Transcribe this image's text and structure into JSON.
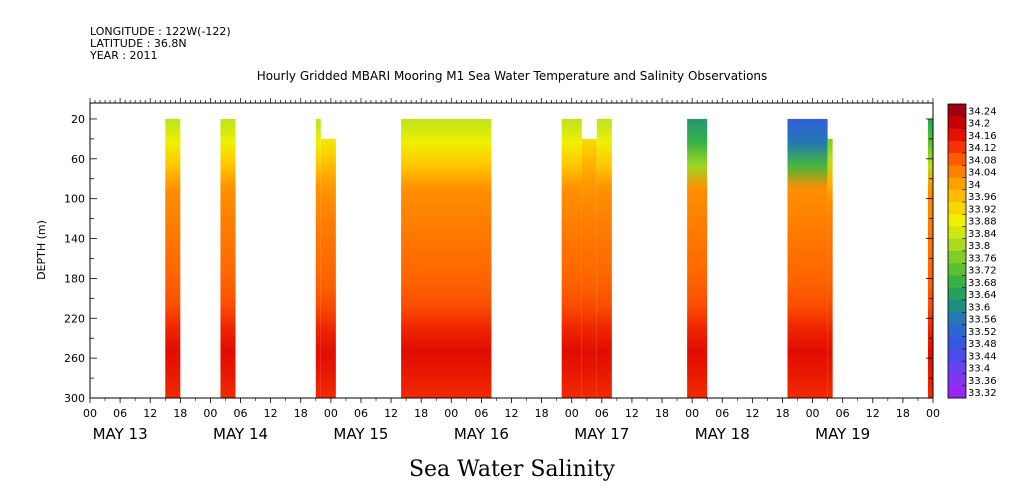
{
  "header": {
    "longitude": "LONGITUDE : 122W(-122)",
    "latitude": "LATITUDE : 36.8N",
    "year": "YEAR : 2011"
  },
  "chart_data": {
    "type": "heatmap",
    "title": "Hourly Gridded MBARI Mooring M1 Sea Water Temperature and Salinity Observations",
    "subtitle": "Sea Water Salinity",
    "ylabel": "DEPTH (m)",
    "ylim": [
      300,
      0
    ],
    "yticks": [
      20,
      60,
      100,
      140,
      180,
      220,
      260,
      300
    ],
    "xrange_hours": [
      0,
      168
    ],
    "xtick_labels": [
      "00",
      "06",
      "12",
      "18",
      "00",
      "06",
      "12",
      "18",
      "00",
      "06",
      "12",
      "18",
      "00",
      "06",
      "12",
      "18",
      "00",
      "06",
      "12",
      "18",
      "00",
      "06",
      "12",
      "18",
      "00",
      "06",
      "12",
      "18",
      "00"
    ],
    "date_labels": [
      "MAY 13",
      "MAY 14",
      "MAY 15",
      "MAY 16",
      "MAY 17",
      "MAY 18",
      "MAY 19"
    ],
    "colorbar": {
      "labels": [
        "34.24",
        "34.2",
        "34.16",
        "34.12",
        "34.08",
        "34.04",
        "34",
        "33.96",
        "33.92",
        "33.88",
        "33.84",
        "33.8",
        "33.76",
        "33.72",
        "33.68",
        "33.64",
        "33.6",
        "33.56",
        "33.52",
        "33.48",
        "33.44",
        "33.4",
        "33.36",
        "33.32"
      ],
      "min": 33.32,
      "max": 34.28,
      "step": 0.04
    },
    "data_blocks": [
      {
        "start_hour": 15,
        "end_hour": 18,
        "top_depth": 20,
        "surface": 33.84
      },
      {
        "start_hour": 26,
        "end_hour": 29,
        "top_depth": 20,
        "surface": 33.84
      },
      {
        "start_hour": 45,
        "end_hour": 46,
        "top_depth": 20,
        "surface": 33.84
      },
      {
        "start_hour": 46,
        "end_hour": 49,
        "top_depth": 40,
        "surface": 33.86
      },
      {
        "start_hour": 62,
        "end_hour": 80,
        "top_depth": 20,
        "surface": 33.84
      },
      {
        "start_hour": 94,
        "end_hour": 98,
        "top_depth": 20,
        "surface": 33.84
      },
      {
        "start_hour": 98,
        "end_hour": 101,
        "top_depth": 40,
        "surface": 33.88
      },
      {
        "start_hour": 101,
        "end_hour": 104,
        "top_depth": 20,
        "surface": 33.84
      },
      {
        "start_hour": 119,
        "end_hour": 123,
        "top_depth": 20,
        "surface": 33.64
      },
      {
        "start_hour": 139,
        "end_hour": 147,
        "top_depth": 20,
        "surface": 33.52
      },
      {
        "start_hour": 147,
        "end_hour": 148,
        "top_depth": 40,
        "surface": 33.72
      },
      {
        "start_hour": 167,
        "end_hour": 168,
        "top_depth": 20,
        "surface": 33.68
      }
    ]
  }
}
